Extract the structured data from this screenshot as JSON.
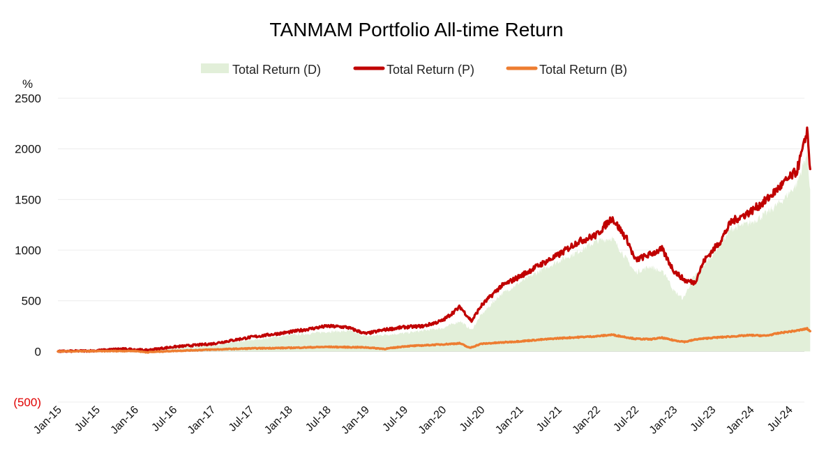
{
  "chart_data": {
    "type": "area",
    "title": "TANMAM Portfolio All-time Return",
    "ylabel": "%",
    "ylim": [
      -500,
      2500
    ],
    "yticks": [
      {
        "value": 2500,
        "label": "2500"
      },
      {
        "value": 2000,
        "label": "2000"
      },
      {
        "value": 1500,
        "label": "1500"
      },
      {
        "value": 1000,
        "label": "1000"
      },
      {
        "value": 500,
        "label": "500"
      },
      {
        "value": 0,
        "label": "0"
      },
      {
        "value": -500,
        "label": "(500)"
      }
    ],
    "xticks": [
      "Jan-15",
      "Jul-15",
      "Jan-16",
      "Jul-16",
      "Jan-17",
      "Jul-17",
      "Jan-18",
      "Jul-18",
      "Jan-19",
      "Jul-19",
      "Jan-20",
      "Jul-20",
      "Jan-21",
      "Jul-21",
      "Jan-22",
      "Jul-22",
      "Jan-23",
      "Jul-23",
      "Jan-24",
      "Jul-24"
    ],
    "x_range": [
      0,
      19.4
    ],
    "grid": true,
    "legend_position": "top-center",
    "colors": {
      "D": "#e2efd9",
      "P": "#c00000",
      "B": "#ed7d31",
      "negative_tick": "#e00000"
    },
    "series": [
      {
        "name": "Total Return (D)",
        "kind": "area",
        "points": [
          [
            0,
            0
          ],
          [
            1,
            6
          ],
          [
            2,
            15
          ],
          [
            2.3,
            10
          ],
          [
            3,
            32
          ],
          [
            4,
            60
          ],
          [
            5,
            110
          ],
          [
            6,
            160
          ],
          [
            6.5,
            175
          ],
          [
            7,
            195
          ],
          [
            7.6,
            200
          ],
          [
            8,
            150
          ],
          [
            9,
            180
          ],
          [
            10,
            230
          ],
          [
            10.45,
            300
          ],
          [
            10.75,
            210
          ],
          [
            11,
            360
          ],
          [
            11.5,
            560
          ],
          [
            12,
            680
          ],
          [
            12.5,
            790
          ],
          [
            13,
            890
          ],
          [
            13.5,
            980
          ],
          [
            14,
            1090
          ],
          [
            14.4,
            1120
          ],
          [
            14.8,
            900
          ],
          [
            15,
            780
          ],
          [
            15.4,
            840
          ],
          [
            15.8,
            760
          ],
          [
            16,
            600
          ],
          [
            16.25,
            520
          ],
          [
            16.5,
            720
          ],
          [
            17,
            950
          ],
          [
            17.5,
            1210
          ],
          [
            18,
            1270
          ],
          [
            18.4,
            1360
          ],
          [
            18.8,
            1480
          ],
          [
            19.2,
            1650
          ],
          [
            19.4,
            1880
          ],
          [
            19.47,
            1950
          ],
          [
            19.55,
            1600
          ]
        ]
      },
      {
        "name": "Total Return (P)",
        "kind": "line",
        "points": [
          [
            0,
            0
          ],
          [
            1,
            8
          ],
          [
            1.6,
            25
          ],
          [
            2,
            20
          ],
          [
            2.3,
            12
          ],
          [
            3,
            45
          ],
          [
            4,
            75
          ],
          [
            5,
            140
          ],
          [
            6,
            190
          ],
          [
            6.5,
            220
          ],
          [
            7,
            250
          ],
          [
            7.5,
            240
          ],
          [
            8,
            175
          ],
          [
            8.5,
            215
          ],
          [
            9,
            240
          ],
          [
            9.5,
            250
          ],
          [
            10,
            305
          ],
          [
            10.45,
            440
          ],
          [
            10.75,
            300
          ],
          [
            11,
            450
          ],
          [
            11.5,
            640
          ],
          [
            12,
            740
          ],
          [
            12.5,
            850
          ],
          [
            13,
            950
          ],
          [
            13.5,
            1080
          ],
          [
            14,
            1150
          ],
          [
            14.4,
            1320
          ],
          [
            14.8,
            1100
          ],
          [
            15,
            900
          ],
          [
            15.4,
            960
          ],
          [
            15.7,
            1010
          ],
          [
            16,
            800
          ],
          [
            16.3,
            700
          ],
          [
            16.55,
            680
          ],
          [
            16.8,
            900
          ],
          [
            17.2,
            1080
          ],
          [
            17.5,
            1280
          ],
          [
            18,
            1380
          ],
          [
            18.4,
            1490
          ],
          [
            18.8,
            1640
          ],
          [
            19.2,
            1780
          ],
          [
            19.4,
            2050
          ],
          [
            19.47,
            2200
          ],
          [
            19.55,
            1800
          ]
        ]
      },
      {
        "name": "Total Return (B)",
        "kind": "line",
        "points": [
          [
            0,
            0
          ],
          [
            1,
            3
          ],
          [
            2,
            5
          ],
          [
            2.3,
            -8
          ],
          [
            3,
            5
          ],
          [
            4,
            18
          ],
          [
            5,
            30
          ],
          [
            6,
            35
          ],
          [
            7,
            45
          ],
          [
            8,
            40
          ],
          [
            8.5,
            25
          ],
          [
            9,
            50
          ],
          [
            10,
            70
          ],
          [
            10.45,
            80
          ],
          [
            10.7,
            35
          ],
          [
            11,
            75
          ],
          [
            12,
            100
          ],
          [
            13,
            130
          ],
          [
            14,
            150
          ],
          [
            14.4,
            165
          ],
          [
            15,
            125
          ],
          [
            15.4,
            120
          ],
          [
            15.7,
            135
          ],
          [
            16,
            110
          ],
          [
            16.3,
            95
          ],
          [
            16.6,
            120
          ],
          [
            17,
            135
          ],
          [
            18,
            160
          ],
          [
            18.4,
            155
          ],
          [
            18.8,
            185
          ],
          [
            19.2,
            205
          ],
          [
            19.47,
            225
          ],
          [
            19.55,
            200
          ]
        ]
      }
    ]
  }
}
